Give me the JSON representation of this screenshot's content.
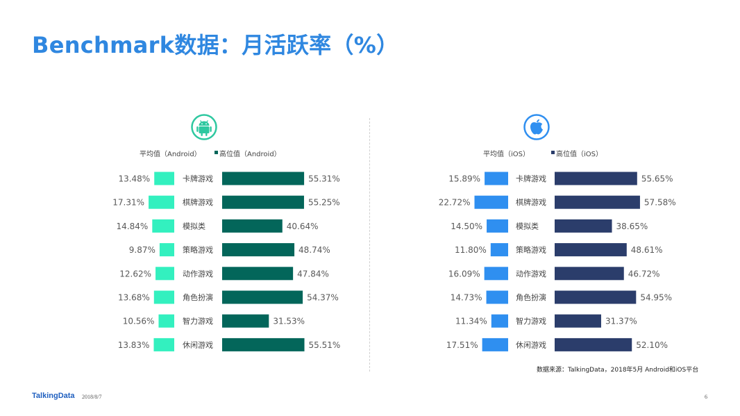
{
  "page": {
    "title": "Benchmark数据：月活跃率（%）",
    "source": "数据来源：TalkingData，2018年5月 Android和iOS平台",
    "footer_logo": "TalkingData",
    "footer_date": "2018/8/7",
    "page_number": "6"
  },
  "chart_data": [
    {
      "type": "bar",
      "platform_icon": "android-icon",
      "categories": [
        "卡牌游戏",
        "棋牌游戏",
        "模拟类",
        "策略游戏",
        "动作游戏",
        "角色扮演",
        "智力游戏",
        "休闲游戏"
      ],
      "series": [
        {
          "name": "平均值（Android）",
          "values": [
            13.48,
            17.31,
            14.84,
            9.87,
            12.62,
            13.68,
            10.56,
            13.83
          ],
          "labels": [
            "13.48%",
            "17.31%",
            "14.84%",
            "9.87%",
            "12.62%",
            "13.68%",
            "10.56%",
            "13.83%"
          ],
          "color": "#33f0bf"
        },
        {
          "name": "高位值（Android）",
          "values": [
            55.31,
            55.25,
            40.64,
            48.74,
            47.84,
            54.37,
            31.53,
            55.51
          ],
          "labels": [
            "55.31%",
            "55.25%",
            "40.64%",
            "48.74%",
            "47.84%",
            "54.37%",
            "31.53%",
            "55.51%"
          ],
          "color": "#03665a"
        }
      ],
      "accent_color": "#2ec8a0"
    },
    {
      "type": "bar",
      "platform_icon": "apple-icon",
      "categories": [
        "卡牌游戏",
        "棋牌游戏",
        "模拟类",
        "策略游戏",
        "动作游戏",
        "角色扮演",
        "智力游戏",
        "休闲游戏"
      ],
      "series": [
        {
          "name": "平均值（iOS）",
          "values": [
            15.89,
            22.72,
            14.5,
            11.8,
            16.09,
            14.73,
            11.34,
            17.51
          ],
          "labels": [
            "15.89%",
            "22.72%",
            "14.50%",
            "11.80%",
            "16.09%",
            "14.73%",
            "11.34%",
            "17.51%"
          ],
          "color": "#2f8ff0"
        },
        {
          "name": "高位值（iOS）",
          "values": [
            55.65,
            57.58,
            38.65,
            48.61,
            46.72,
            54.95,
            31.37,
            52.1
          ],
          "labels": [
            "55.65%",
            "57.58%",
            "38.65%",
            "48.61%",
            "46.72%",
            "54.95%",
            "31.37%",
            "52.10%"
          ],
          "color": "#2b3d6b"
        }
      ],
      "accent_color": "#2f8ff0"
    }
  ]
}
